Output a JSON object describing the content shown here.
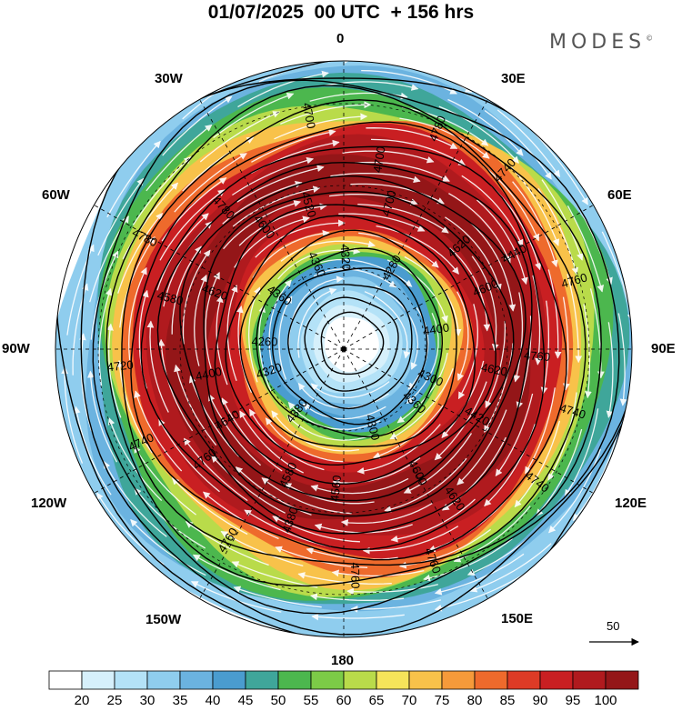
{
  "title": "01/07/2025  00 UTC  + 156 hrs",
  "logo": "MODES",
  "logo_mark": "©",
  "longitude_labels": {
    "lon_0": "0",
    "lon_30e": "30E",
    "lon_60e": "60E",
    "lon_90e": "90E",
    "lon_120e": "120E",
    "lon_150e": "150E",
    "lon_180": "180",
    "lon_150w": "150W",
    "lon_120w": "120W",
    "lon_90w": "90W",
    "lon_60w": "60W",
    "lon_30w": "30W"
  },
  "vector_reference": "50",
  "colorbar": {
    "ticks": [
      "20",
      "25",
      "30",
      "35",
      "40",
      "45",
      "50",
      "55",
      "60",
      "65",
      "70",
      "75",
      "80",
      "85",
      "90",
      "95",
      "100"
    ],
    "colors": [
      "#ffffff",
      "#d6f0fb",
      "#b4e2f7",
      "#8fcdee",
      "#6bb3e0",
      "#4a9ccf",
      "#3fa69a",
      "#4cb74e",
      "#7ccb47",
      "#b9db4a",
      "#f5e45a",
      "#f8c24a",
      "#f59a3a",
      "#ee6a2c",
      "#dd3b26",
      "#c91f22",
      "#b01a1e",
      "#941618"
    ]
  },
  "contour_labels": [
    "4740",
    "4740",
    "4780",
    "4760",
    "4780",
    "4760",
    "4760",
    "4700",
    "4740",
    "4720",
    "4740",
    "4760",
    "4780",
    "4760",
    "4760",
    "4700",
    "4620",
    "4580",
    "4440",
    "4380",
    "4360",
    "4300",
    "4320",
    "4280",
    "4300",
    "4360",
    "4400",
    "4380",
    "4320",
    "4360",
    "4260",
    "4620",
    "4560",
    "4600",
    "4620",
    "4640",
    "4700",
    "4600",
    "4620",
    "4600",
    "4580",
    "4520",
    "4420",
    "4400"
  ],
  "field": {
    "core_max_colatitude_deg": 48,
    "jet_core_colatitude_deg": 33,
    "map_boundary_colatitude_deg": 71
  }
}
